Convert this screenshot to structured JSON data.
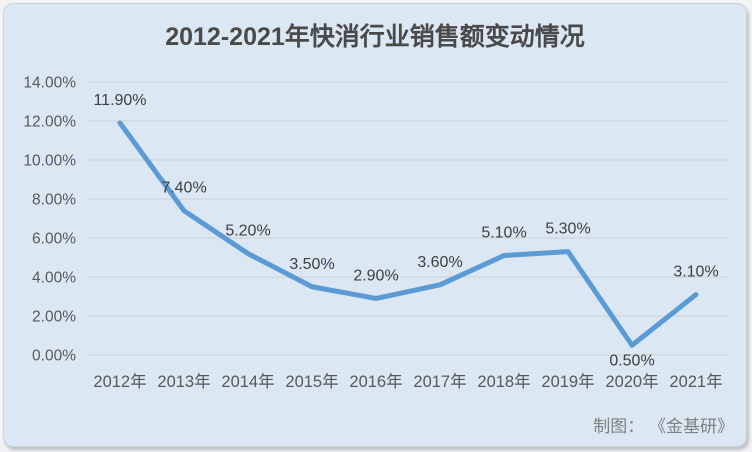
{
  "chart_data": {
    "type": "line",
    "title": "2012-2021年快消行业销售额变动情况",
    "categories": [
      "2012年",
      "2013年",
      "2014年",
      "2015年",
      "2016年",
      "2017年",
      "2018年",
      "2019年",
      "2020年",
      "2021年"
    ],
    "values": [
      11.9,
      7.4,
      5.2,
      3.5,
      2.9,
      3.6,
      5.1,
      5.3,
      0.5,
      3.1
    ],
    "data_labels": [
      "11.90%",
      "7.40%",
      "5.20%",
      "3.50%",
      "2.90%",
      "3.60%",
      "5.10%",
      "5.30%",
      "0.50%",
      "3.10%"
    ],
    "label_positions": [
      "above",
      "above",
      "above",
      "above",
      "above",
      "above",
      "above",
      "above",
      "below",
      "above"
    ],
    "y_tick_values": [
      0,
      2,
      4,
      6,
      8,
      10,
      12,
      14
    ],
    "y_tick_labels": [
      "0.00%",
      "2.00%",
      "4.00%",
      "6.00%",
      "8.00%",
      "10.00%",
      "12.00%",
      "14.00%"
    ],
    "ylim": [
      0,
      14
    ],
    "xlabel": "",
    "ylabel": "",
    "grid": true,
    "legend": "none",
    "footer": "制图： 《金基研》",
    "colors": {
      "line": "#5b9bd5",
      "background": "#dbe7f3",
      "gridline": "#d3d8dd",
      "title_text": "#4a4a4a",
      "axis_text": "#595959",
      "label_text": "#404040",
      "footer_text": "#808080"
    }
  }
}
